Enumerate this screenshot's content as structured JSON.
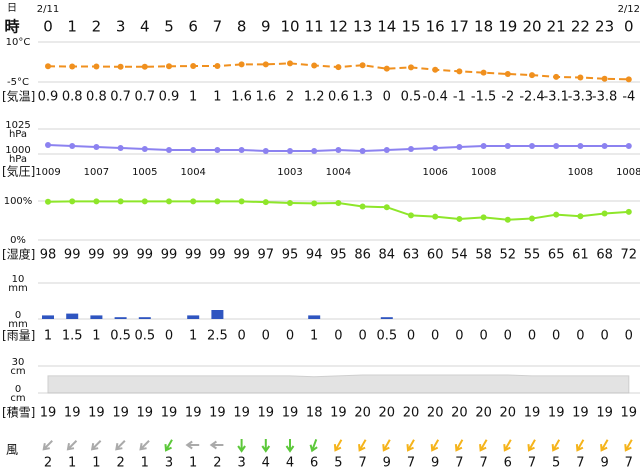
{
  "header": {
    "day_label": "日",
    "hour_label": "時",
    "dates": [
      "2/11",
      null,
      null,
      null,
      null,
      null,
      null,
      null,
      null,
      null,
      null,
      null,
      null,
      null,
      null,
      null,
      null,
      null,
      null,
      null,
      null,
      null,
      null,
      null,
      "2/12"
    ],
    "hours": [
      "0",
      "1",
      "2",
      "3",
      "4",
      "5",
      "6",
      "7",
      "8",
      "9",
      "10",
      "11",
      "12",
      "13",
      "14",
      "15",
      "16",
      "17",
      "18",
      "19",
      "20",
      "21",
      "22",
      "23",
      "0"
    ]
  },
  "chart_data": [
    {
      "type": "line",
      "name": "[気温]",
      "color": "#f0901e",
      "dashed": true,
      "values": [
        0.9,
        0.8,
        0.8,
        0.7,
        0.7,
        0.9,
        1,
        1,
        1.6,
        1.6,
        2,
        1.2,
        0.6,
        1.3,
        0,
        0.5,
        -0.4,
        -1,
        -1.5,
        -2,
        -2.4,
        -3.1,
        -3.3,
        -3.8,
        -4
      ],
      "ylim": [
        -5,
        10
      ],
      "yticks": [
        {
          "value": 10,
          "label": "10°C"
        },
        {
          "value": -5,
          "label": "-5°C"
        }
      ]
    },
    {
      "type": "line",
      "name": "[気圧]",
      "color": "#8c82f0",
      "dashed": false,
      "values": [
        1009,
        1008,
        1007,
        1006,
        1005,
        1004,
        1004,
        1004,
        1004,
        1003,
        1003,
        1003,
        1004,
        1003,
        1004,
        1005,
        1006,
        1007,
        1008,
        1008,
        1008,
        1008,
        1008,
        1008,
        1008
      ],
      "value_labels": [
        "1009",
        null,
        "1007",
        null,
        "1005",
        null,
        "1004",
        null,
        null,
        null,
        "1003",
        null,
        "1004",
        null,
        null,
        null,
        "1006",
        null,
        "1008",
        null,
        null,
        null,
        "1008",
        null,
        "1008"
      ],
      "ylim": [
        1000,
        1025
      ],
      "yticks": [
        1025,
        1000
      ],
      "ytick_unit": "hPa"
    },
    {
      "type": "line",
      "name": "[湿度]",
      "color": "#8ee62a",
      "dashed": false,
      "values": [
        98,
        99,
        99,
        99,
        99,
        99,
        99,
        99,
        99,
        97,
        95,
        94,
        95,
        86,
        84,
        63,
        60,
        54,
        58,
        52,
        55,
        65,
        61,
        68,
        72
      ],
      "ylim": [
        0,
        100
      ],
      "yticks": [
        {
          "value": 100,
          "label": "100%"
        },
        {
          "value": 0,
          "label": "0%"
        }
      ]
    },
    {
      "type": "bar",
      "name": "[雨量]",
      "color": "#2f55c0",
      "values": [
        1,
        1.5,
        1,
        0.5,
        0.5,
        0,
        1,
        2.5,
        0,
        0,
        0,
        1,
        0,
        0,
        0.5,
        0,
        0,
        0,
        0,
        0,
        0,
        0,
        0,
        0,
        0
      ],
      "ylim": [
        0,
        10
      ],
      "yticks": [
        10,
        0
      ],
      "ytick_unit": "mm"
    },
    {
      "type": "area",
      "name": "[積雪]",
      "color": "#d8d8d8",
      "values": [
        19,
        19,
        19,
        19,
        19,
        19,
        19,
        19,
        19,
        19,
        19,
        18,
        19,
        20,
        20,
        20,
        20,
        20,
        20,
        20,
        19,
        19,
        19,
        19,
        19
      ],
      "ylim": [
        0,
        30
      ],
      "yticks": [
        30,
        0
      ],
      "ytick_unit": "cm"
    },
    {
      "type": "wind",
      "name": "風",
      "values": [
        2,
        1,
        1,
        2,
        1,
        3,
        1,
        2,
        3,
        4,
        4,
        6,
        5,
        7,
        9,
        7,
        9,
        7,
        7,
        6,
        7,
        5,
        7,
        9,
        7
      ],
      "directions": [
        225,
        225,
        225,
        225,
        225,
        210,
        270,
        270,
        180,
        180,
        180,
        200,
        210,
        210,
        210,
        210,
        210,
        210,
        210,
        210,
        210,
        210,
        210,
        210,
        210
      ],
      "colors": [
        "#aaaaaa",
        "#aaaaaa",
        "#aaaaaa",
        "#aaaaaa",
        "#aaaaaa",
        "#5cc83a",
        "#aaaaaa",
        "#aaaaaa",
        "#5cc83a",
        "#5cc83a",
        "#5cc83a",
        "#5cc83a",
        "#f5b41c",
        "#f5b41c",
        "#f5b41c",
        "#f5b41c",
        "#f5b41c",
        "#f5b41c",
        "#f5b41c",
        "#f5b41c",
        "#f5b41c",
        "#f5b41c",
        "#f5b41c",
        "#f5b41c",
        "#f5b41c"
      ]
    }
  ]
}
